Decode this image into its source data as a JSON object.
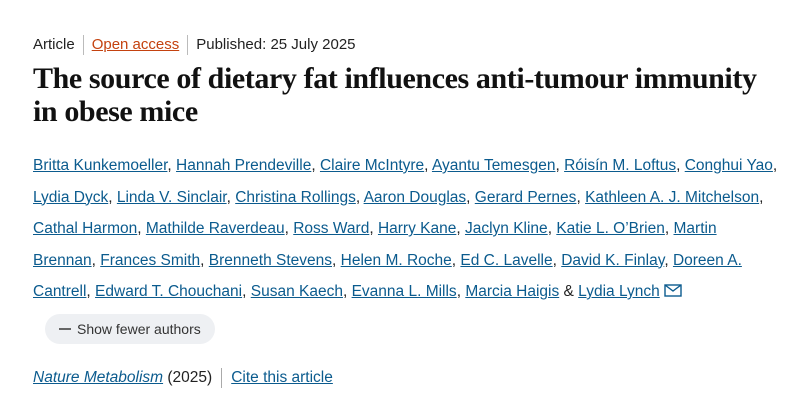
{
  "meta": {
    "type": "Article",
    "access": "Open access",
    "published": "Published: 25 July 2025"
  },
  "title": "The source of dietary fat influences anti-tumour immunity in obese mice",
  "authors": {
    "names": [
      "Britta Kunkemoeller",
      "Hannah Prendeville",
      "Claire McIntyre",
      "Ayantu Temesgen",
      "Róisín M. Loftus",
      "Conghui Yao",
      "Lydia Dyck",
      "Linda V. Sinclair",
      "Christina Rollings",
      "Aaron Douglas",
      "Gerard Pernes",
      "Kathleen A. J. Mitchelson",
      "Cathal Harmon",
      "Mathilde Raverdeau",
      "Ross Ward",
      "Harry Kane",
      "Jaclyn Kline",
      "Katie L. O’Brien",
      "Martin Brennan",
      "Frances Smith",
      "Brenneth Stevens",
      "Helen M. Roche",
      "Ed C. Lavelle",
      "David K. Finlay",
      "Doreen A. Cantrell",
      "Edward T. Chouchani",
      "Susan Kaech",
      "Evanna L. Mills",
      "Marcia Haigis",
      "Lydia Lynch"
    ],
    "separator": ",",
    "conjunction": "&",
    "toggle": "Show fewer authors"
  },
  "citation": {
    "journal": "Nature Metabolism",
    "year": "(2025)",
    "cite": "Cite this article"
  }
}
